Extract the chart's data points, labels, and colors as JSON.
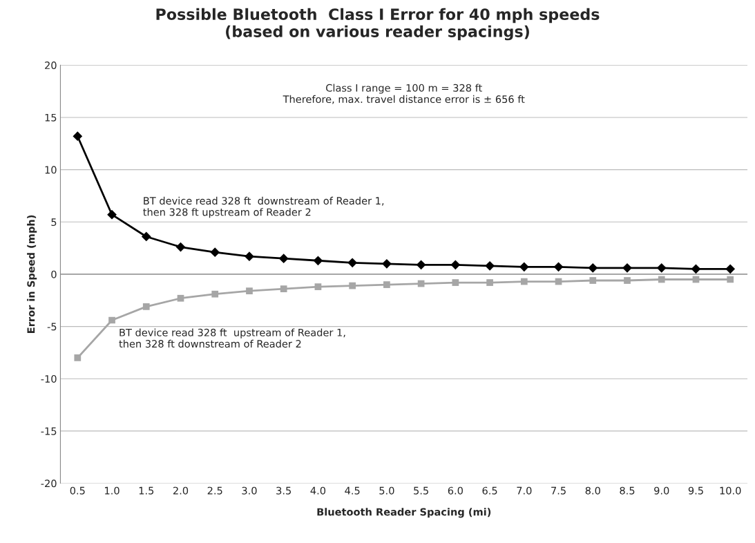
{
  "chart_data": {
    "type": "line",
    "title": "Possible Bluetooth  Class I Error for 40 mph speeds\n(based on various reader spacings)",
    "xlabel": "Bluetooth Reader Spacing (mi)",
    "ylabel": "Error in Speed (mph)",
    "categories": [
      "0.5",
      "1.0",
      "1.5",
      "2.0",
      "2.5",
      "3.0",
      "3.5",
      "4.0",
      "4.5",
      "5.0",
      "5.5",
      "6.0",
      "6.5",
      "7.0",
      "7.5",
      "8.0",
      "8.5",
      "9.0",
      "9.5",
      "10.0"
    ],
    "series": [
      {
        "name": "BT device read 328 ft  downstream of Reader 1,\nthen 328 ft upstream of Reader 2",
        "color": "#000000",
        "marker": "diamond",
        "values": [
          13.2,
          5.7,
          3.6,
          2.6,
          2.1,
          1.7,
          1.5,
          1.3,
          1.1,
          1.0,
          0.9,
          0.9,
          0.8,
          0.7,
          0.7,
          0.6,
          0.6,
          0.6,
          0.5,
          0.5
        ]
      },
      {
        "name": "BT device read 328 ft  upstream of Reader 1,\nthen 328 ft downstream of Reader 2",
        "color": "#a6a6a6",
        "marker": "square",
        "values": [
          -8.0,
          -4.4,
          -3.1,
          -2.3,
          -1.9,
          -1.6,
          -1.4,
          -1.2,
          -1.1,
          -1.0,
          -0.9,
          -0.8,
          -0.8,
          -0.7,
          -0.7,
          -0.6,
          -0.6,
          -0.5,
          -0.5,
          -0.5
        ]
      }
    ],
    "ylim": [
      -20,
      20
    ],
    "yticks": [
      -20,
      -15,
      -10,
      -5,
      0,
      5,
      10,
      15,
      20
    ],
    "grid": "y",
    "legend": false,
    "line_style": "solid",
    "annotations": [
      "Class I range = 100 m = 328 ft\nTherefore, max. travel distance error is ± 656 ft"
    ]
  }
}
